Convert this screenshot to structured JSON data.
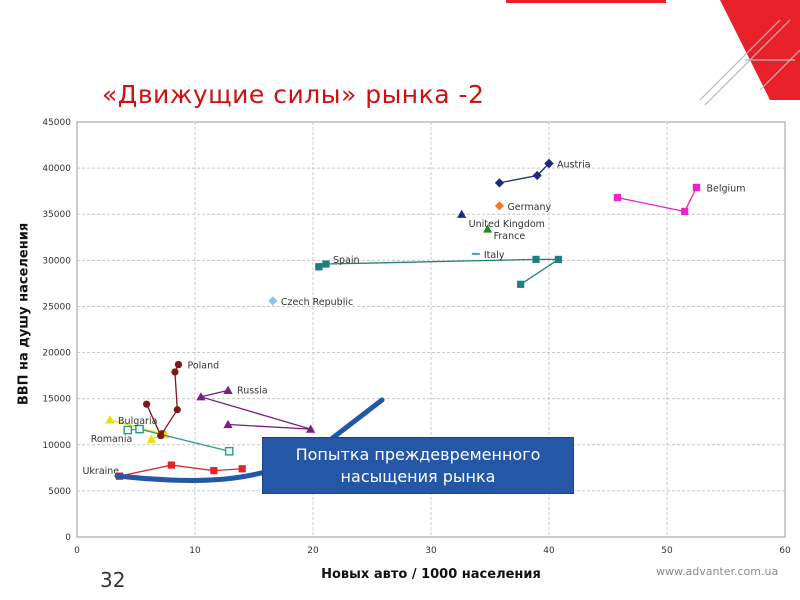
{
  "slide": {
    "title": "«Движущие силы» рынка -2",
    "number": "32",
    "website": "www.advanter.com.ua",
    "callout": [
      "Попытка преждевременного",
      "насыщения рынка"
    ]
  },
  "colors": {
    "title": "#d01010",
    "callout_bg": "#2557a7",
    "arrow": "#2557a7",
    "grid": "#c8c8c8",
    "corner_red": "#e8202a"
  },
  "chart_data": {
    "type": "scatter",
    "xlabel": "Новых авто / 1000 населения",
    "ylabel": "ВВП на душу населения",
    "xlim": [
      0,
      60
    ],
    "ylim": [
      0,
      45000
    ],
    "xticks": [
      "0",
      "10",
      "20",
      "30",
      "40",
      "50",
      "60"
    ],
    "yticks": [
      "0",
      "5000",
      "10000",
      "15000",
      "20000",
      "25000",
      "30000",
      "35000",
      "40000",
      "45000"
    ],
    "grid": true,
    "series": [
      {
        "name": "Austria",
        "color": "#1f2a80",
        "marker": "diamond",
        "points": [
          [
            35.8,
            38400
          ],
          [
            39.0,
            39200
          ],
          [
            40.0,
            40500
          ]
        ]
      },
      {
        "name": "Belgium",
        "color": "#ee22cc",
        "marker": "square",
        "points": [
          [
            45.8,
            36800
          ],
          [
            51.5,
            35300
          ],
          [
            52.5,
            37900
          ]
        ]
      },
      {
        "name": "Germany",
        "color": "#ee7a20",
        "marker": "diamond",
        "points": [
          [
            35.8,
            35900
          ]
        ]
      },
      {
        "name": "United Kingdom",
        "color": "#1f2a80",
        "marker": "triangle",
        "points": [
          [
            32.6,
            35000
          ]
        ]
      },
      {
        "name": "France",
        "color": "#1f8a2a",
        "marker": "triangle",
        "points": [
          [
            34.8,
            33400
          ]
        ]
      },
      {
        "name": "Italy",
        "color": "#3aa3cc",
        "marker": "dash",
        "points": [
          [
            33.8,
            30700
          ]
        ]
      },
      {
        "name": "Spain",
        "color": "#1f7f7f",
        "marker": "square",
        "points": [
          [
            37.6,
            27400
          ],
          [
            40.8,
            30100
          ],
          [
            38.9,
            30100
          ],
          [
            21.1,
            29600
          ],
          [
            20.5,
            29300
          ]
        ]
      },
      {
        "name": "Czech Republic",
        "color": "#8fc4e6",
        "marker": "diamond",
        "points": [
          [
            16.6,
            25600
          ]
        ]
      },
      {
        "name": "Poland",
        "color": "#7a1a1a",
        "marker": "circle",
        "points": [
          [
            7.2,
            11200
          ],
          [
            8.5,
            13800
          ],
          [
            8.3,
            17900
          ],
          [
            8.6,
            18700
          ]
        ]
      },
      {
        "name": "Russia",
        "color": "#7a1f7f",
        "marker": "triangle",
        "points": [
          [
            12.8,
            12200
          ],
          [
            19.8,
            11700
          ],
          [
            10.5,
            15200
          ],
          [
            12.8,
            15900
          ]
        ]
      },
      {
        "name": "Bulgaria",
        "color": "#f0e000",
        "marker": "triangle",
        "points": [
          [
            6.3,
            10600
          ],
          [
            7.5,
            11100
          ],
          [
            2.8,
            12700
          ]
        ]
      },
      {
        "name": "Romania",
        "color": "#2a9a8a",
        "marker": "square-open",
        "points": [
          [
            12.9,
            9300
          ],
          [
            5.3,
            11700
          ],
          [
            4.3,
            11600
          ]
        ]
      },
      {
        "name": "Ukraine",
        "color": "#e8202a",
        "marker": "square",
        "points": [
          [
            14.0,
            7400
          ],
          [
            11.6,
            7200
          ],
          [
            8.0,
            7800
          ],
          [
            3.6,
            6600
          ]
        ]
      },
      {
        "name": "",
        "color": "#7a1a1a",
        "marker": "circle",
        "points": [
          [
            5.9,
            14400
          ],
          [
            7.1,
            11000
          ]
        ]
      }
    ]
  }
}
